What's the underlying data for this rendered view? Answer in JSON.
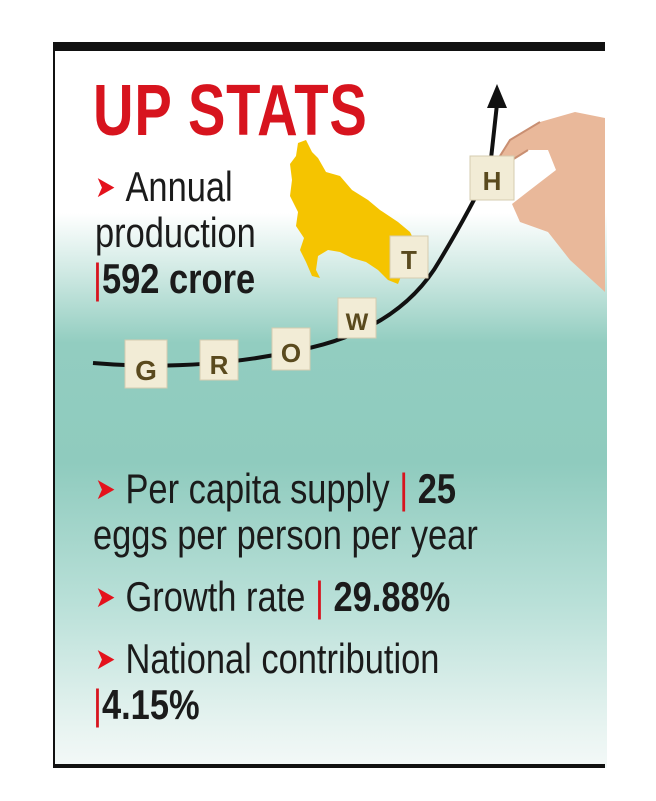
{
  "title": "UP STATS",
  "bullet_icon": "red-arrowhead-icon",
  "colors": {
    "title": "#d7141e",
    "map": "#f5c400",
    "teal": "#8fcbbe"
  },
  "graphic": {
    "letters": [
      "G",
      "R",
      "O",
      "W",
      "T",
      "H"
    ]
  },
  "stats": {
    "annual": {
      "label_line1": "Annual",
      "label_line2": "production",
      "separator": "|",
      "value": "592 crore"
    },
    "per_capita": {
      "label": "Per capita supply",
      "separator": "|",
      "value": "25",
      "continuation": "eggs per person per year"
    },
    "growth": {
      "label": "Growth rate",
      "separator": "|",
      "value": "29.88%"
    },
    "national": {
      "label": "National contribution",
      "separator": "|",
      "value": "4.15%"
    }
  }
}
